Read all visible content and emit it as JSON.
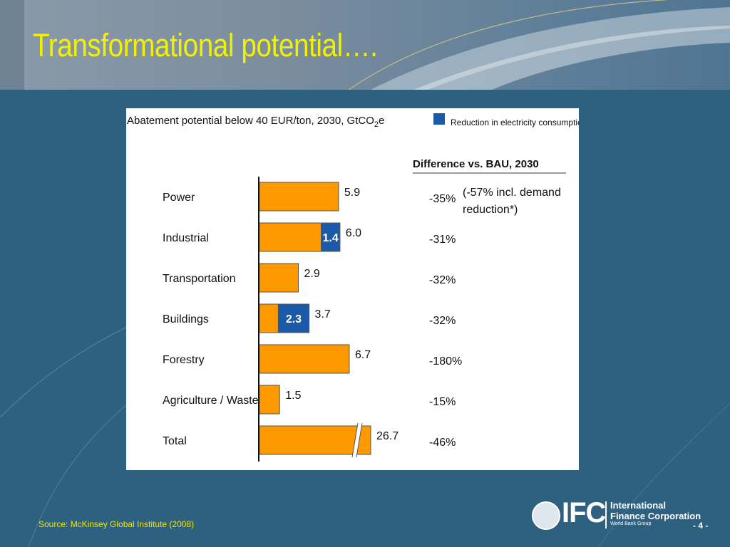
{
  "slide": {
    "title": "Transformational potential….",
    "source": "Source:  McKinsey Global Institute (2008)",
    "page_number": "- 4 -"
  },
  "logo": {
    "abbr": "IFC",
    "line1": "International",
    "line2": "Finance Corporation",
    "line3": "World Bank Group"
  },
  "colors": {
    "bar": "#ff9900",
    "electricity": "#1a5aa8",
    "title": "#f2f200"
  },
  "chart_data": {
    "type": "bar",
    "orientation": "horizontal",
    "title_main": "Abatement potential below 40 EUR/ton, 2030, GtCO",
    "title_sub": "2",
    "title_tail": "e",
    "legend": {
      "label": "Reduction in electricity consumption",
      "placement": "top-right"
    },
    "diff_header": "Difference vs. BAU, 2030",
    "categories": [
      "Power",
      "Industrial",
      "Transportation",
      "Buildings",
      "Forestry",
      "Agriculture / Waste",
      "Total"
    ],
    "values": [
      5.9,
      6.0,
      2.9,
      3.7,
      6.7,
      1.5,
      26.7
    ],
    "value_labels": [
      "5.9",
      "6.0",
      "2.9",
      "3.7",
      "6.7",
      "1.5",
      "26.7"
    ],
    "electricity_reduction": [
      null,
      1.4,
      null,
      2.3,
      null,
      null,
      null
    ],
    "electricity_labels": [
      "",
      "1.4",
      "",
      "2.3",
      "",
      "",
      ""
    ],
    "axis_break": [
      false,
      false,
      false,
      false,
      false,
      false,
      true
    ],
    "differences": [
      "-35%",
      "-31%",
      "-32%",
      "-32%",
      "-180%",
      "-15%",
      "-46%"
    ],
    "difference_notes": [
      "(-57% incl. demand reduction*)",
      "",
      "",
      "",
      "",
      "",
      ""
    ],
    "xlim": [
      0,
      7.5
    ],
    "grid": false
  }
}
